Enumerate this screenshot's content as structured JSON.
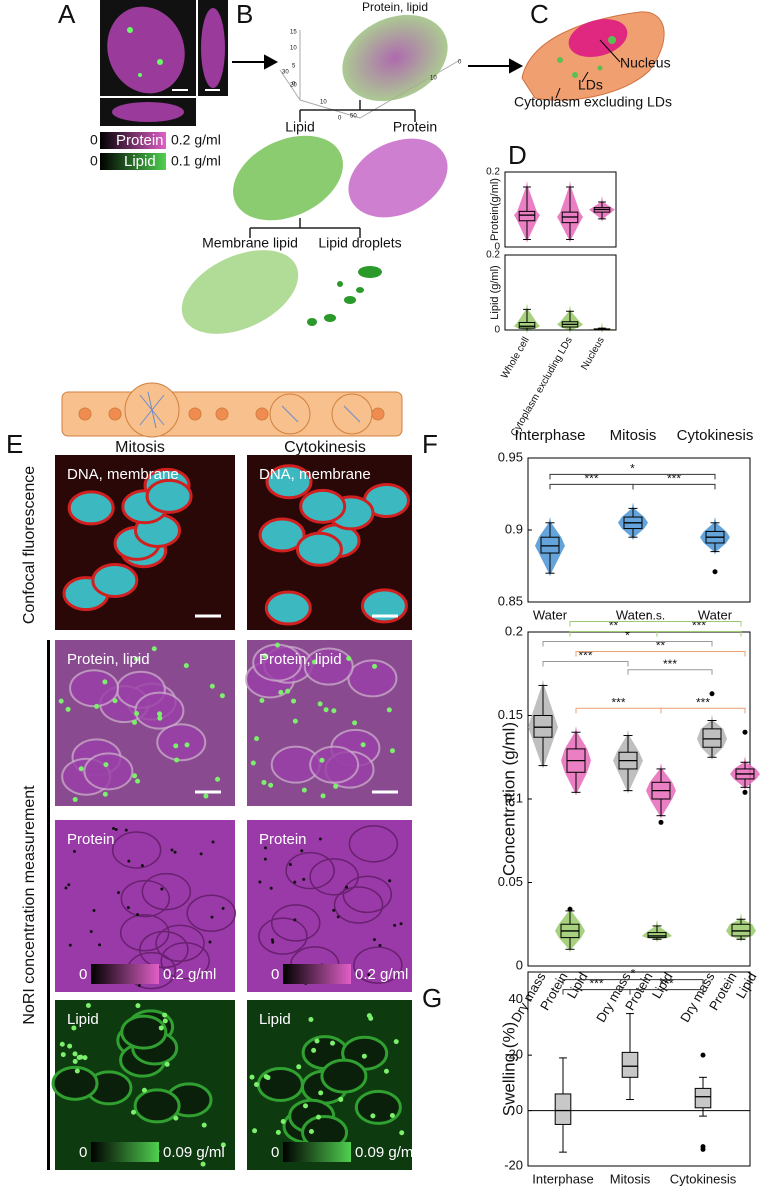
{
  "figure": {
    "panel_labels": [
      "A",
      "B",
      "C",
      "D",
      "E",
      "F",
      "G"
    ],
    "a": {
      "protein_min": "0",
      "protein": "Protein",
      "protein_max": "0.2 g/ml",
      "lipid_min": "0",
      "lipid": "Lipid",
      "lipid_max": "0.1 g/ml"
    },
    "b": {
      "title": "Protein, lipid",
      "lipid": "Lipid",
      "protein": "Protein",
      "membrane_lipid": "Membrane lipid",
      "lipid_droplets": "Lipid droplets",
      "axis_ticks": [
        "15",
        "10",
        "5",
        "0",
        "30",
        "20",
        "10",
        "0",
        "50",
        "10",
        "0"
      ]
    },
    "c": {
      "nucleus": "Nucleus",
      "lds": "LDs",
      "cytoplasm": "Cytoplasm excluding LDs"
    },
    "e": {
      "columns": [
        "Mitosis",
        "Cytokinesis"
      ],
      "row_group_1": "Confocal fluorescence",
      "row_group_2": "NoRI concentration measurement",
      "rows": [
        "DNA, membrane",
        "Protein, lipid",
        "Protein",
        "Lipid"
      ],
      "scales": [
        {
          "min": "0",
          "max": "0.2 g/ml"
        },
        {
          "min": "0",
          "max": "0.09 g/ml"
        }
      ]
    }
  },
  "chart_data": [
    {
      "type": "box",
      "violin": true,
      "ylabel": "Protein(g/ml)",
      "ylim": [
        0,
        0.2
      ],
      "yticks": [
        0,
        0.2
      ],
      "boxes": [
        {
          "min": 0.02,
          "q1": 0.07,
          "median": 0.085,
          "q3": 0.095,
          "max": 0.16,
          "color": "#e868b8"
        },
        {
          "min": 0.02,
          "q1": 0.065,
          "median": 0.08,
          "q3": 0.093,
          "max": 0.16,
          "color": "#e868b8"
        },
        {
          "min": 0.075,
          "q1": 0.093,
          "median": 0.1,
          "q3": 0.105,
          "max": 0.12,
          "color": "#e868b8"
        }
      ]
    },
    {
      "type": "box",
      "violin": true,
      "ylabel": "Lipid (g/ml)",
      "ylim": [
        0,
        0.2
      ],
      "yticks": [
        0,
        0.2
      ],
      "categories": [
        "Whole cell",
        "Cytoplasm excluding LDs",
        "Nucleus"
      ],
      "boxes": [
        {
          "min": 0,
          "q1": 0.005,
          "median": 0.01,
          "q3": 0.02,
          "max": 0.055,
          "color": "#98c868"
        },
        {
          "min": 0,
          "q1": 0.008,
          "median": 0.015,
          "q3": 0.022,
          "max": 0.05,
          "color": "#98c868"
        },
        {
          "min": 0,
          "q1": 0.001,
          "median": 0.002,
          "q3": 0.003,
          "max": 0.005,
          "color": "#98c868"
        }
      ]
    },
    {
      "type": "box",
      "violin": true,
      "ylim": [
        0.85,
        0.95
      ],
      "yticks": [
        0.85,
        0.9,
        0.95
      ],
      "groups": [
        "Interphase",
        "Mitosis",
        "Cytokinesis"
      ],
      "categories": [
        "Water",
        "Water",
        "Water"
      ],
      "boxes": [
        {
          "min": 0.87,
          "q1": 0.884,
          "median": 0.889,
          "q3": 0.895,
          "max": 0.905,
          "color": "#4a94d4"
        },
        {
          "min": 0.895,
          "q1": 0.901,
          "median": 0.905,
          "q3": 0.909,
          "max": 0.915,
          "color": "#4a94d4"
        },
        {
          "min": 0.885,
          "q1": 0.891,
          "median": 0.895,
          "q3": 0.899,
          "max": 0.905,
          "color": "#4a94d4",
          "outliers": [
            0.871
          ]
        }
      ],
      "brackets": [
        {
          "from": 0,
          "to": 1,
          "label": "***",
          "color": "#333333"
        },
        {
          "from": 1,
          "to": 2,
          "label": "***",
          "color": "#333333"
        },
        {
          "from": 0,
          "to": 2,
          "label": "*",
          "color": "#333333"
        }
      ]
    },
    {
      "type": "box",
      "violin": true,
      "ylabel": "Concentration (g/ml)",
      "ylim": [
        0,
        0.2
      ],
      "yticks": [
        0,
        0.05,
        0.1,
        0.15,
        0.2
      ],
      "categories": [
        "Dry mass",
        "Protein",
        "Lipid",
        "Dry mass",
        "Protein",
        "Lipid",
        "Dry mass",
        "Protein",
        "Lipid"
      ],
      "boxes": [
        {
          "min": 0.12,
          "q1": 0.137,
          "median": 0.143,
          "q3": 0.15,
          "max": 0.168,
          "color": "#b4b4b4"
        },
        {
          "min": 0.104,
          "q1": 0.116,
          "median": 0.123,
          "q3": 0.13,
          "max": 0.14,
          "color": "#e868b8"
        },
        {
          "min": 0.01,
          "q1": 0.017,
          "median": 0.021,
          "q3": 0.025,
          "max": 0.033,
          "color": "#98c868",
          "outliers": [
            0.034
          ]
        },
        {
          "min": 0.105,
          "q1": 0.118,
          "median": 0.123,
          "q3": 0.128,
          "max": 0.138,
          "color": "#b4b4b4"
        },
        {
          "min": 0.09,
          "q1": 0.1,
          "median": 0.105,
          "q3": 0.11,
          "max": 0.118,
          "color": "#e868b8",
          "outliers": [
            0.086
          ]
        },
        {
          "min": 0.016,
          "q1": 0.017,
          "median": 0.018,
          "q3": 0.02,
          "max": 0.024,
          "color": "#98c868"
        },
        {
          "min": 0.125,
          "q1": 0.131,
          "median": 0.136,
          "q3": 0.142,
          "max": 0.147,
          "color": "#b4b4b4",
          "outliers": [
            0.163
          ]
        },
        {
          "min": 0.107,
          "q1": 0.112,
          "median": 0.115,
          "q3": 0.118,
          "max": 0.122,
          "color": "#e868b8",
          "outliers": [
            0.14,
            0.104
          ]
        },
        {
          "min": 0.016,
          "q1": 0.018,
          "median": 0.021,
          "q3": 0.025,
          "max": 0.028,
          "color": "#98c868"
        }
      ],
      "brackets": [
        {
          "from": 1,
          "to": 4,
          "label": "***",
          "color": "#e8a070"
        },
        {
          "from": 4,
          "to": 7,
          "label": "***",
          "color": "#e8a070"
        },
        {
          "from": 0,
          "to": 3,
          "label": "***",
          "color": "#999999"
        },
        {
          "from": 3,
          "to": 6,
          "label": "***",
          "color": "#999999"
        },
        {
          "from": 1,
          "to": 7,
          "label": "**",
          "color": "#e8a070"
        },
        {
          "from": 0,
          "to": 6,
          "label": "*",
          "color": "#999999"
        },
        {
          "from": 2,
          "to": 5,
          "label": "**",
          "color": "#9ccc70"
        },
        {
          "from": 5,
          "to": 8,
          "label": "***",
          "color": "#9ccc70"
        },
        {
          "from": 2,
          "to": 8,
          "label": "n.s.",
          "color": "#9ccc70"
        }
      ]
    },
    {
      "type": "box",
      "violin": false,
      "zero_line": true,
      "ylabel": "Swelling (%)",
      "ylim": [
        -20,
        50
      ],
      "yticks": [
        -20,
        0,
        20,
        40
      ],
      "categories": [
        "Interphase",
        "Mitosis",
        "Cytokinesis"
      ],
      "boxes": [
        {
          "min": -15,
          "q1": -5,
          "median": 0,
          "q3": 6,
          "max": 19,
          "color": "#c8c8c8"
        },
        {
          "min": 4,
          "q1": 12,
          "median": 16,
          "q3": 21,
          "max": 35,
          "color": "#c8c8c8"
        },
        {
          "min": -2,
          "q1": 1,
          "median": 5,
          "q3": 8,
          "max": 12,
          "color": "#c8c8c8",
          "outliers": [
            20,
            -13,
            -14
          ]
        }
      ],
      "brackets": [
        {
          "from": 0,
          "to": 1,
          "label": "***",
          "color": "#333333"
        },
        {
          "from": 1,
          "to": 2,
          "label": "***",
          "color": "#333333"
        },
        {
          "from": 0,
          "to": 2,
          "label": "*",
          "color": "#333333"
        }
      ]
    }
  ]
}
